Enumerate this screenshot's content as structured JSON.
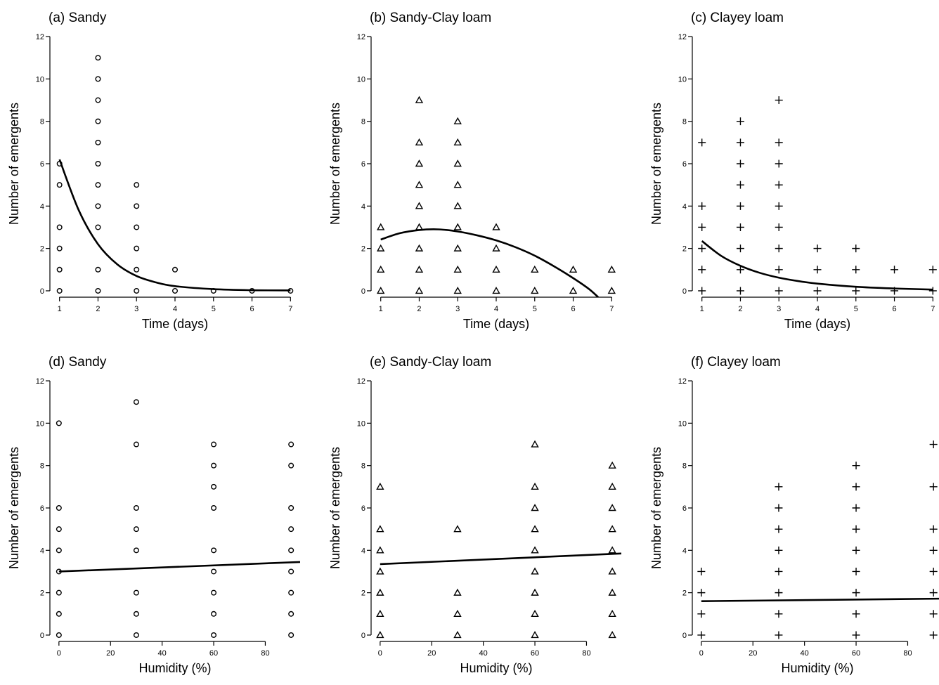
{
  "chart_data": [
    {
      "panel": "a",
      "type": "scatter",
      "title": "(a) Sandy",
      "xlabel": "Time (days)",
      "ylabel": "Number of emergents",
      "marker": "circle",
      "xlim": [
        0.75,
        7.25
      ],
      "ylim": [
        -0.3,
        12.3
      ],
      "xticks": [
        1,
        2,
        3,
        4,
        5,
        6,
        7
      ],
      "yticks": [
        0,
        2,
        4,
        6,
        8,
        10,
        12
      ],
      "points": [
        [
          1,
          0
        ],
        [
          1,
          1
        ],
        [
          1,
          2
        ],
        [
          1,
          3
        ],
        [
          1,
          5
        ],
        [
          1,
          6
        ],
        [
          2,
          0
        ],
        [
          2,
          1
        ],
        [
          2,
          3
        ],
        [
          2,
          4
        ],
        [
          2,
          5
        ],
        [
          2,
          6
        ],
        [
          2,
          7
        ],
        [
          2,
          8
        ],
        [
          2,
          9
        ],
        [
          2,
          10
        ],
        [
          2,
          11
        ],
        [
          3,
          0
        ],
        [
          3,
          1
        ],
        [
          3,
          2
        ],
        [
          3,
          3
        ],
        [
          3,
          4
        ],
        [
          3,
          5
        ],
        [
          4,
          0
        ],
        [
          4,
          1
        ],
        [
          5,
          0
        ],
        [
          6,
          0
        ],
        [
          7,
          0
        ]
      ],
      "fit": {
        "type": "curve",
        "points": [
          [
            1,
            6.2
          ],
          [
            1.5,
            3.8
          ],
          [
            2,
            2.2
          ],
          [
            2.5,
            1.25
          ],
          [
            3,
            0.7
          ],
          [
            3.5,
            0.4
          ],
          [
            4,
            0.22
          ],
          [
            5,
            0.08
          ],
          [
            6,
            0.03
          ],
          [
            7,
            0.02
          ]
        ]
      }
    },
    {
      "panel": "b",
      "type": "scatter",
      "title": "(b) Sandy-Clay loam",
      "xlabel": "Time (days)",
      "ylabel": "Number of emergents",
      "marker": "triangle",
      "xlim": [
        0.75,
        7.25
      ],
      "ylim": [
        -0.3,
        12.3
      ],
      "xticks": [
        1,
        2,
        3,
        4,
        5,
        6,
        7
      ],
      "yticks": [
        0,
        2,
        4,
        6,
        8,
        10,
        12
      ],
      "points": [
        [
          1,
          0
        ],
        [
          1,
          1
        ],
        [
          1,
          2
        ],
        [
          1,
          3
        ],
        [
          2,
          0
        ],
        [
          2,
          1
        ],
        [
          2,
          2
        ],
        [
          2,
          3
        ],
        [
          2,
          4
        ],
        [
          2,
          5
        ],
        [
          2,
          6
        ],
        [
          2,
          7
        ],
        [
          2,
          9
        ],
        [
          3,
          0
        ],
        [
          3,
          1
        ],
        [
          3,
          2
        ],
        [
          3,
          3
        ],
        [
          3,
          4
        ],
        [
          3,
          5
        ],
        [
          3,
          6
        ],
        [
          3,
          7
        ],
        [
          3,
          8
        ],
        [
          4,
          0
        ],
        [
          4,
          1
        ],
        [
          4,
          2
        ],
        [
          4,
          3
        ],
        [
          5,
          0
        ],
        [
          5,
          1
        ],
        [
          6,
          0
        ],
        [
          6,
          1
        ],
        [
          7,
          0
        ],
        [
          7,
          1
        ]
      ],
      "fit": {
        "type": "curve",
        "points": [
          [
            1,
            2.42
          ],
          [
            1.5,
            2.72
          ],
          [
            2,
            2.87
          ],
          [
            2.5,
            2.9
          ],
          [
            3,
            2.8
          ],
          [
            3.5,
            2.62
          ],
          [
            4,
            2.38
          ],
          [
            4.5,
            2.06
          ],
          [
            5,
            1.66
          ],
          [
            5.5,
            1.16
          ],
          [
            6,
            0.6
          ],
          [
            6.4,
            0.1
          ],
          [
            6.65,
            -0.3
          ]
        ]
      }
    },
    {
      "panel": "c",
      "type": "scatter",
      "title": "(c) Clayey loam",
      "xlabel": "Time (days)",
      "ylabel": "Number of emergents",
      "marker": "plus",
      "xlim": [
        0.75,
        7.25
      ],
      "ylim": [
        -0.3,
        12.3
      ],
      "xticks": [
        1,
        2,
        3,
        4,
        5,
        6,
        7
      ],
      "yticks": [
        0,
        2,
        4,
        6,
        8,
        10,
        12
      ],
      "points": [
        [
          1,
          0
        ],
        [
          1,
          1
        ],
        [
          1,
          2
        ],
        [
          1,
          3
        ],
        [
          1,
          4
        ],
        [
          1,
          7
        ],
        [
          2,
          0
        ],
        [
          2,
          1
        ],
        [
          2,
          2
        ],
        [
          2,
          3
        ],
        [
          2,
          4
        ],
        [
          2,
          5
        ],
        [
          2,
          6
        ],
        [
          2,
          7
        ],
        [
          2,
          8
        ],
        [
          3,
          0
        ],
        [
          3,
          1
        ],
        [
          3,
          2
        ],
        [
          3,
          3
        ],
        [
          3,
          4
        ],
        [
          3,
          5
        ],
        [
          3,
          6
        ],
        [
          3,
          7
        ],
        [
          3,
          9
        ],
        [
          4,
          0
        ],
        [
          4,
          1
        ],
        [
          4,
          2
        ],
        [
          5,
          0
        ],
        [
          5,
          1
        ],
        [
          5,
          2
        ],
        [
          6,
          0
        ],
        [
          6,
          1
        ],
        [
          7,
          0
        ],
        [
          7,
          1
        ]
      ],
      "fit": {
        "type": "curve",
        "points": [
          [
            1,
            2.35
          ],
          [
            1.5,
            1.65
          ],
          [
            2,
            1.18
          ],
          [
            2.5,
            0.85
          ],
          [
            3,
            0.62
          ],
          [
            3.5,
            0.46
          ],
          [
            4,
            0.34
          ],
          [
            5,
            0.19
          ],
          [
            6,
            0.11
          ],
          [
            7,
            0.06
          ]
        ]
      }
    },
    {
      "panel": "d",
      "type": "scatter",
      "title": "(d) Sandy",
      "xlabel": "Humidity (%)",
      "ylabel": "Number of emergents",
      "marker": "circle",
      "xlim": [
        -3.5,
        93.5
      ],
      "ylim": [
        -0.3,
        12.3
      ],
      "xticks": [
        0,
        20,
        40,
        60,
        80
      ],
      "yticks": [
        0,
        2,
        4,
        6,
        8,
        10,
        12
      ],
      "points": [
        [
          0,
          0
        ],
        [
          0,
          1
        ],
        [
          0,
          2
        ],
        [
          0,
          3
        ],
        [
          0,
          4
        ],
        [
          0,
          5
        ],
        [
          0,
          6
        ],
        [
          0,
          10
        ],
        [
          30,
          0
        ],
        [
          30,
          1
        ],
        [
          30,
          2
        ],
        [
          30,
          4
        ],
        [
          30,
          5
        ],
        [
          30,
          6
        ],
        [
          30,
          9
        ],
        [
          30,
          11
        ],
        [
          60,
          0
        ],
        [
          60,
          1
        ],
        [
          60,
          2
        ],
        [
          60,
          3
        ],
        [
          60,
          4
        ],
        [
          60,
          6
        ],
        [
          60,
          7
        ],
        [
          60,
          8
        ],
        [
          60,
          9
        ],
        [
          90,
          0
        ],
        [
          90,
          1
        ],
        [
          90,
          2
        ],
        [
          90,
          3
        ],
        [
          90,
          4
        ],
        [
          90,
          5
        ],
        [
          90,
          6
        ],
        [
          90,
          8
        ],
        [
          90,
          9
        ]
      ],
      "fit": {
        "type": "line",
        "points": [
          [
            0,
            3.0
          ],
          [
            93.5,
            3.45
          ]
        ]
      }
    },
    {
      "panel": "e",
      "type": "scatter",
      "title": "(e) Sandy-Clay loam",
      "xlabel": "Humidity (%)",
      "ylabel": "Number of emergents",
      "marker": "triangle",
      "xlim": [
        -3.5,
        93.5
      ],
      "ylim": [
        -0.3,
        12.3
      ],
      "xticks": [
        0,
        20,
        40,
        60,
        80
      ],
      "yticks": [
        0,
        2,
        4,
        6,
        8,
        10,
        12
      ],
      "points": [
        [
          0,
          0
        ],
        [
          0,
          1
        ],
        [
          0,
          2
        ],
        [
          0,
          3
        ],
        [
          0,
          4
        ],
        [
          0,
          5
        ],
        [
          0,
          7
        ],
        [
          30,
          0
        ],
        [
          30,
          1
        ],
        [
          30,
          2
        ],
        [
          30,
          5
        ],
        [
          60,
          0
        ],
        [
          60,
          1
        ],
        [
          60,
          2
        ],
        [
          60,
          3
        ],
        [
          60,
          4
        ],
        [
          60,
          5
        ],
        [
          60,
          6
        ],
        [
          60,
          7
        ],
        [
          60,
          9
        ],
        [
          90,
          0
        ],
        [
          90,
          1
        ],
        [
          90,
          2
        ],
        [
          90,
          3
        ],
        [
          90,
          4
        ],
        [
          90,
          5
        ],
        [
          90,
          6
        ],
        [
          90,
          7
        ],
        [
          90,
          8
        ]
      ],
      "fit": {
        "type": "line",
        "points": [
          [
            0,
            3.35
          ],
          [
            93.5,
            3.85
          ]
        ]
      }
    },
    {
      "panel": "f",
      "type": "scatter",
      "title": "(f) Clayey loam",
      "xlabel": "Humidity (%)",
      "ylabel": "Number of emergents",
      "marker": "plus",
      "xlim": [
        -3.5,
        93.5
      ],
      "ylim": [
        -0.3,
        12.3
      ],
      "xticks": [
        0,
        20,
        40,
        60,
        80
      ],
      "yticks": [
        0,
        2,
        4,
        6,
        8,
        10,
        12
      ],
      "points": [
        [
          0,
          0
        ],
        [
          0,
          1
        ],
        [
          0,
          2
        ],
        [
          0,
          3
        ],
        [
          30,
          0
        ],
        [
          30,
          1
        ],
        [
          30,
          2
        ],
        [
          30,
          3
        ],
        [
          30,
          4
        ],
        [
          30,
          5
        ],
        [
          30,
          6
        ],
        [
          30,
          7
        ],
        [
          60,
          0
        ],
        [
          60,
          1
        ],
        [
          60,
          2
        ],
        [
          60,
          3
        ],
        [
          60,
          4
        ],
        [
          60,
          5
        ],
        [
          60,
          6
        ],
        [
          60,
          7
        ],
        [
          60,
          8
        ],
        [
          90,
          0
        ],
        [
          90,
          1
        ],
        [
          90,
          2
        ],
        [
          90,
          3
        ],
        [
          90,
          4
        ],
        [
          90,
          5
        ],
        [
          90,
          7
        ],
        [
          90,
          9
        ]
      ],
      "fit": {
        "type": "line",
        "points": [
          [
            0,
            1.6
          ],
          [
            93.5,
            1.72
          ]
        ]
      }
    }
  ]
}
